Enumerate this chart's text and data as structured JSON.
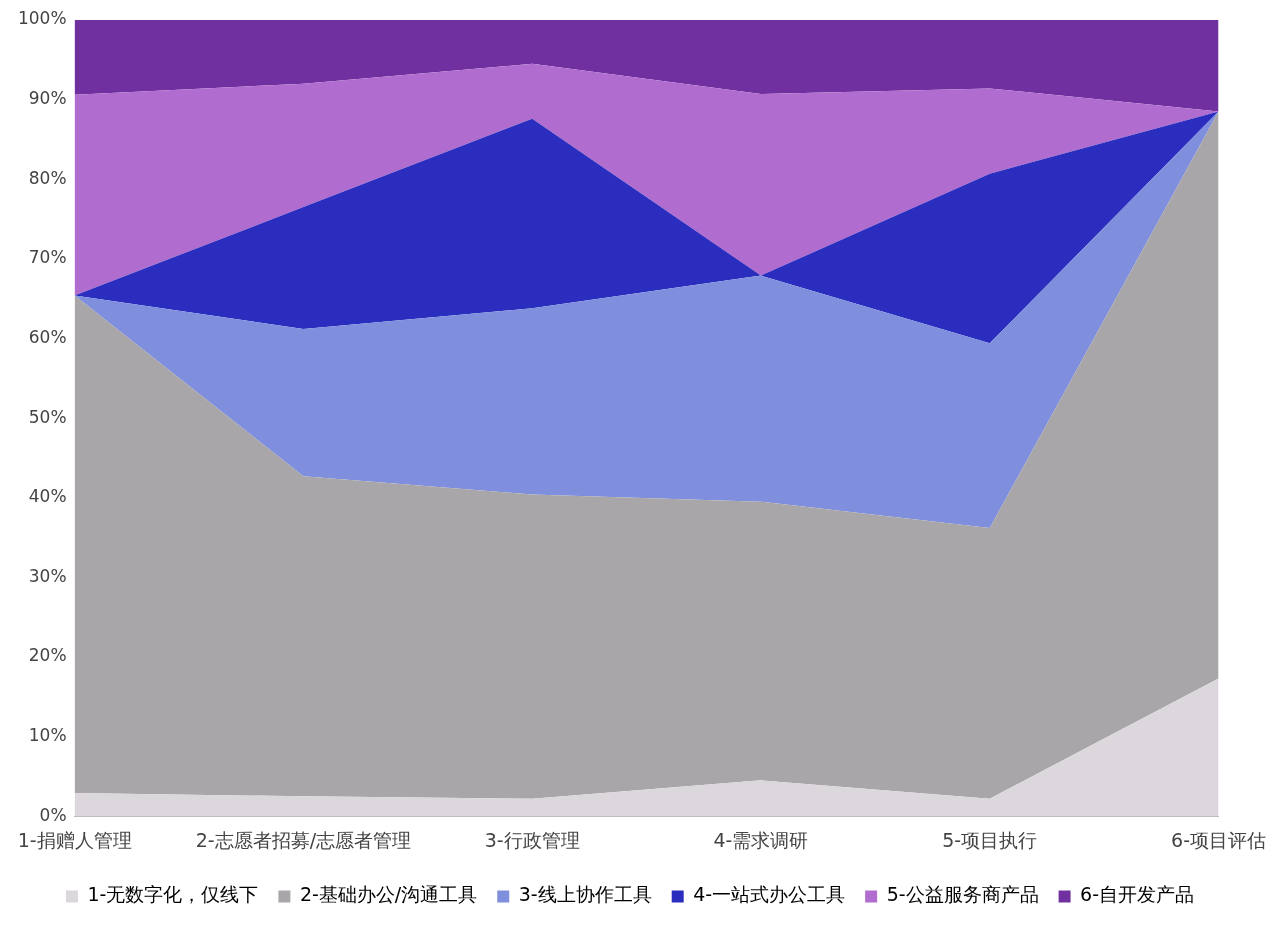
{
  "chart_data": {
    "type": "area",
    "stacked": true,
    "grid": false,
    "legend": "bottom",
    "marker": "none",
    "categories": [
      "1-捐赠人管理",
      "2-志愿者招募/志愿者管理",
      "3-行政管理",
      "4-需求调研",
      "5-项目执行",
      "6-项目评估"
    ],
    "ylim": [
      0,
      100
    ],
    "yticks": [
      {
        "value": 0,
        "label": "0%"
      },
      {
        "value": 10,
        "label": "10%"
      },
      {
        "value": 20,
        "label": "20%"
      },
      {
        "value": 30,
        "label": "30%"
      },
      {
        "value": 40,
        "label": "40%"
      },
      {
        "value": 50,
        "label": "50%"
      },
      {
        "value": 60,
        "label": "60%"
      },
      {
        "value": 70,
        "label": "70%"
      },
      {
        "value": 80,
        "label": "80%"
      },
      {
        "value": 90,
        "label": "90%"
      },
      {
        "value": 100,
        "label": "100%"
      }
    ],
    "series": [
      {
        "name": "1-无数字化，仅线下",
        "color": "#dcd7dc",
        "values": [
          2.9,
          2.5,
          2.2,
          4.5,
          2.2,
          17.3
        ]
      },
      {
        "name": "2-基础办公/沟通工具",
        "color": "#a9a6a9",
        "values": [
          62.5,
          40.2,
          38.2,
          35.0,
          34.0,
          71.2
        ]
      },
      {
        "name": "3-线上协作工具",
        "color": "#7f8fdd",
        "values": [
          0,
          18.5,
          23.4,
          28.4,
          23.2,
          0
        ]
      },
      {
        "name": "4-一站式办公工具",
        "color": "#2a2dbd",
        "values": [
          0,
          15.3,
          23.8,
          0,
          21.3,
          0
        ]
      },
      {
        "name": "5-公益服务商产品",
        "color": "#b06ccf",
        "values": [
          25.2,
          15.5,
          6.9,
          22.8,
          10.7,
          0
        ]
      },
      {
        "name": "6-自开发产品",
        "color": "#7030a0",
        "values": [
          9.4,
          8.0,
          5.5,
          9.3,
          8.6,
          11.5
        ]
      }
    ]
  }
}
